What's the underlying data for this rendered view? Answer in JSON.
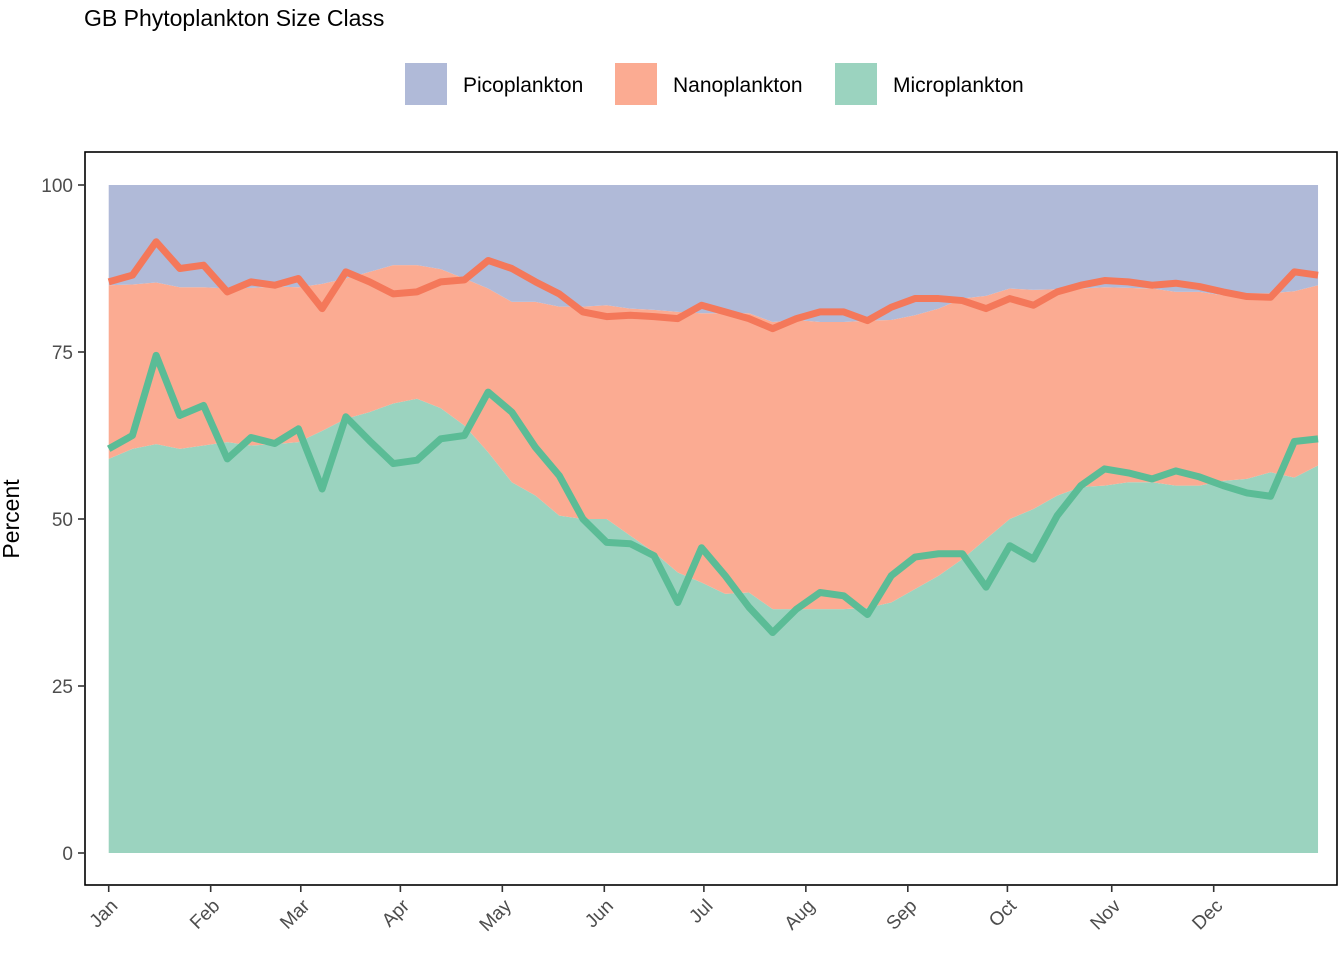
{
  "chart_data": {
    "type": "area",
    "title": "GB Phytoplankton Size Class",
    "xlabel": "",
    "ylabel": "Percent",
    "ylim": [
      0,
      100
    ],
    "y_ticks": [
      0,
      25,
      50,
      75,
      100
    ],
    "x_ticks": [
      "Jan",
      "Feb",
      "Mar",
      "Apr",
      "May",
      "Jun",
      "Jul",
      "Aug",
      "Sep",
      "Oct",
      "Nov",
      "Dec"
    ],
    "x_tick_weeks": [
      1,
      5.3,
      9.1,
      13.3,
      17.6,
      21.9,
      26.1,
      30.4,
      34.7,
      38.9,
      43.3,
      47.6
    ],
    "x_range": [
      0,
      52.8
    ],
    "legend_position": "top",
    "grid": false,
    "colors": {
      "Picoplankton": "#b0bad8",
      "Nanoplankton": "#fbab92",
      "Microplankton": "#9bd3bf",
      "nano_line": "#f4785a",
      "micro_line": "#5bbc96"
    },
    "x": [
      1,
      2,
      3,
      4,
      5,
      6,
      7,
      8,
      9,
      10,
      11,
      12,
      13,
      14,
      15,
      16,
      17,
      18,
      19,
      20,
      21,
      22,
      23,
      24,
      25,
      26,
      27,
      28,
      29,
      30,
      31,
      32,
      33,
      34,
      35,
      36,
      37,
      38,
      39,
      40,
      41,
      42,
      43,
      44,
      45,
      46,
      47,
      48,
      49,
      50,
      51,
      52
    ],
    "series": [
      {
        "name": "Microplankton",
        "type": "area",
        "values": [
          59,
          60.5,
          61.2,
          60.5,
          61,
          61.5,
          61,
          61.2,
          61.5,
          63.2,
          65,
          66,
          67.3,
          68,
          66.6,
          64,
          60,
          55.5,
          53.5,
          50.5,
          50,
          50,
          47.5,
          45,
          42,
          40.5,
          38.8,
          39,
          36.5,
          36.5,
          36.5,
          36.5,
          36.7,
          37.5,
          39.5,
          41.5,
          44,
          47,
          50,
          51.5,
          53.5,
          54.8,
          55,
          55.5,
          55.5,
          55,
          55,
          55.7,
          56,
          57,
          56.2,
          58
        ]
      },
      {
        "name": "Nanoplankton",
        "type": "area",
        "values": [
          26,
          24.6,
          24.2,
          24.2,
          23.7,
          23,
          23.6,
          23.6,
          23.2,
          22,
          21,
          21,
          20.7,
          20,
          20.8,
          22,
          24.5,
          27,
          29,
          31.3,
          31.8,
          32,
          34,
          36.3,
          39,
          40.3,
          42,
          41.8,
          43,
          43.3,
          43,
          43,
          43,
          42.3,
          41,
          40,
          39,
          36.4,
          34.5,
          32.8,
          30.9,
          29.7,
          29.7,
          29.1,
          29,
          29,
          29,
          27.8,
          27.8,
          26.8,
          27.9,
          27
        ]
      },
      {
        "name": "Picoplankton",
        "type": "area",
        "values": [
          15,
          14.9,
          14.6,
          15.3,
          15.3,
          15.5,
          15.4,
          15.2,
          15.3,
          14.8,
          14,
          13,
          12,
          12,
          12.6,
          14,
          15.5,
          17.5,
          17.5,
          18.2,
          18.2,
          18,
          18.5,
          18.7,
          19,
          19.2,
          19.2,
          19.2,
          20.5,
          20.2,
          20.5,
          20.5,
          20.3,
          20.2,
          19.5,
          18.5,
          17,
          16.6,
          15.5,
          15.7,
          15.6,
          15.5,
          15.3,
          15.4,
          15.5,
          16,
          16,
          16.5,
          16.2,
          16.2,
          15.9,
          15
        ]
      },
      {
        "name": "Nanoplankton",
        "type": "line",
        "values": [
          85.5,
          86.5,
          91.5,
          87.5,
          88,
          84,
          85.5,
          85,
          86,
          81.5,
          87,
          85.5,
          83.7,
          84,
          85.5,
          85.8,
          88.7,
          87.5,
          85.5,
          83.7,
          81,
          80.3,
          80.5,
          80.3,
          80,
          82,
          81,
          80,
          78.5,
          80,
          81,
          81,
          79.7,
          81.7,
          83,
          83,
          82.7,
          81.5,
          83,
          82,
          84,
          85,
          85.7,
          85.5,
          85,
          85.3,
          84.8,
          84,
          83.3,
          83.2,
          87,
          86.5
        ]
      },
      {
        "name": "Microplankton",
        "type": "line",
        "values": [
          60.5,
          62.5,
          74.5,
          65.5,
          67,
          59,
          62.2,
          61.3,
          63.5,
          54.5,
          65.3,
          61.7,
          58.3,
          58.8,
          62,
          62.5,
          69,
          66,
          60.7,
          56.5,
          50,
          46.5,
          46.3,
          44.5,
          37.5,
          45.7,
          41.5,
          36.8,
          33,
          36.5,
          39,
          38.5,
          35.7,
          41.5,
          44.3,
          44.8,
          44.8,
          39.8,
          46,
          44,
          50.5,
          55,
          57.5,
          56.9,
          56,
          57.2,
          56.3,
          55,
          53.9,
          53.4,
          61.6,
          62
        ]
      }
    ]
  }
}
